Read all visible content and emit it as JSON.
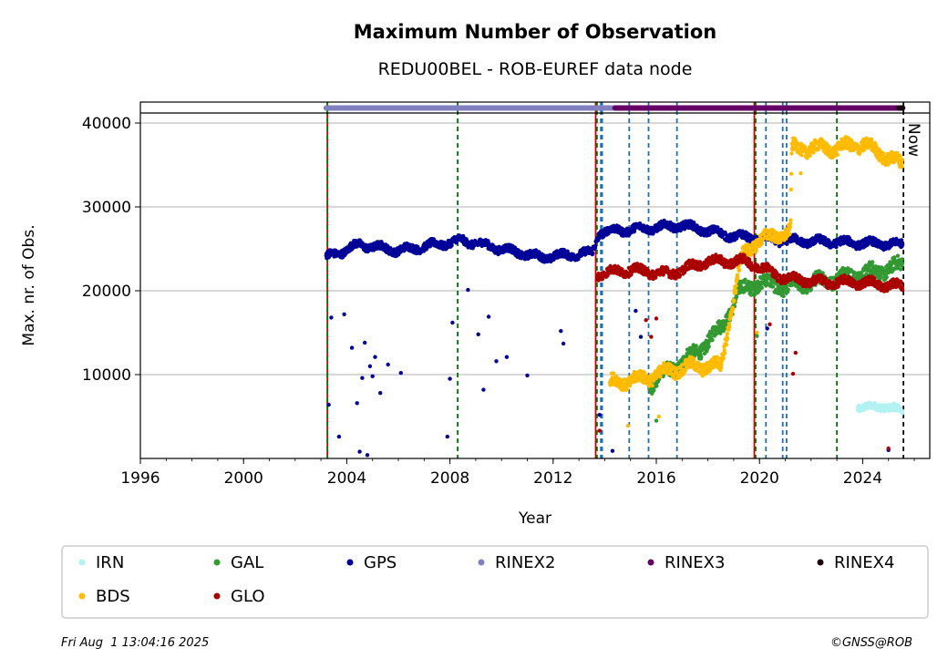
{
  "chart_data": {
    "type": "scatter",
    "title": "Maximum Number of Observation",
    "subtitle": "REDU00BEL - ROB-EUREF data node",
    "xlabel": "Year",
    "ylabel": "Max. nr. of Obs.",
    "xlim": [
      1996,
      2026.6
    ],
    "ylim": [
      0,
      42500
    ],
    "xticks": [
      1996,
      2000,
      2004,
      2008,
      2012,
      2016,
      2020,
      2024
    ],
    "yticks": [
      10000,
      20000,
      30000,
      40000
    ],
    "grid": "horizontal",
    "now_label": "Now",
    "now_x": 2025.58,
    "series": [
      {
        "name": "IRN",
        "color": "#b3f2f2",
        "x_start": 2023.8,
        "x_end": 2025.55,
        "segments": [
          [
            2023.8,
            6200
          ],
          [
            2024.3,
            6000
          ],
          [
            2024.8,
            6300
          ],
          [
            2025.55,
            5600
          ]
        ],
        "noise": 800
      },
      {
        "name": "GAL",
        "color": "#339933",
        "x_start": 2015.7,
        "x_end": 2025.55,
        "segments": [
          [
            2015.7,
            8800
          ],
          [
            2016.5,
            10500
          ],
          [
            2017.5,
            12500
          ],
          [
            2018.5,
            15500
          ],
          [
            2019.2,
            19800
          ],
          [
            2019.9,
            21000
          ],
          [
            2021,
            20500
          ],
          [
            2022,
            21000
          ],
          [
            2023,
            21500
          ],
          [
            2024,
            22000
          ],
          [
            2025.55,
            23000
          ]
        ],
        "noise": 1600
      },
      {
        "name": "GPS",
        "color": "#000099",
        "x_start": 2003.2,
        "x_end": 2025.55,
        "segments": [
          [
            2003.2,
            24000
          ],
          [
            2004.5,
            25500
          ],
          [
            2006,
            24800
          ],
          [
            2008.5,
            26000
          ],
          [
            2010,
            25000
          ],
          [
            2011.5,
            24000
          ],
          [
            2013.5,
            24500
          ],
          [
            2013.8,
            27000
          ],
          [
            2017,
            27800
          ],
          [
            2019,
            26500
          ],
          [
            2021,
            26000
          ],
          [
            2023,
            25800
          ],
          [
            2025.55,
            25500
          ]
        ],
        "noise": 900
      },
      {
        "name": "RINEX2",
        "color": "#8080c0",
        "x_start": 2003.2,
        "x_end": 2014.4,
        "y": 41800
      },
      {
        "name": "RINEX3",
        "color": "#660066",
        "x_start": 2014.4,
        "x_end": 2025.5,
        "y": 41800
      },
      {
        "name": "RINEX4",
        "color": "#1a0010",
        "x_start": 2025.4,
        "x_end": 2025.55,
        "y": 41800
      },
      {
        "name": "BDS",
        "color": "#ffbb00",
        "x_start": 2014.2,
        "x_end": 2025.55,
        "segments": [
          [
            2014.2,
            9000
          ],
          [
            2015.5,
            9500
          ],
          [
            2016.5,
            10500
          ],
          [
            2017.5,
            11000
          ],
          [
            2018.5,
            11000
          ],
          [
            2019.3,
            24000
          ],
          [
            2019.9,
            26000
          ],
          [
            2021.2,
            27000
          ],
          [
            2021.25,
            37000
          ],
          [
            2023,
            37000
          ],
          [
            2024,
            37500
          ],
          [
            2025.55,
            35000
          ]
        ],
        "noise": 1400
      },
      {
        "name": "GLO",
        "color": "#aa0000",
        "x_start": 2013.7,
        "x_end": 2025.55,
        "segments": [
          [
            2013.7,
            22000
          ],
          [
            2015,
            22500
          ],
          [
            2016.5,
            22000
          ],
          [
            2018,
            23500
          ],
          [
            2019.5,
            23500
          ],
          [
            2021,
            21500
          ],
          [
            2022.5,
            21000
          ],
          [
            2024,
            21000
          ],
          [
            2025.55,
            20500
          ]
        ],
        "noise": 1000
      }
    ],
    "outliers": [
      {
        "series": "GPS",
        "points": [
          [
            2003.3,
            6400
          ],
          [
            2003.4,
            16800
          ],
          [
            2003.7,
            2600
          ],
          [
            2003.9,
            17200
          ],
          [
            2004.2,
            13200
          ],
          [
            2004.4,
            6600
          ],
          [
            2004.5,
            800
          ],
          [
            2004.6,
            9600
          ],
          [
            2004.7,
            13800
          ],
          [
            2004.8,
            400
          ],
          [
            2004.9,
            11000
          ],
          [
            2005.0,
            9800
          ],
          [
            2005.1,
            12100
          ],
          [
            2005.3,
            7800
          ],
          [
            2005.6,
            11200
          ],
          [
            2006.1,
            10200
          ],
          [
            2007.9,
            2600
          ],
          [
            2008.0,
            9500
          ],
          [
            2008.1,
            16200
          ],
          [
            2008.7,
            20100
          ],
          [
            2009.1,
            14800
          ],
          [
            2009.3,
            8200
          ],
          [
            2009.5,
            16900
          ],
          [
            2009.8,
            11600
          ],
          [
            2010.2,
            12100
          ],
          [
            2011.0,
            9900
          ],
          [
            2012.3,
            15200
          ],
          [
            2012.4,
            13700
          ],
          [
            2013.8,
            5200
          ],
          [
            2014.3,
            900
          ],
          [
            2015.2,
            17600
          ],
          [
            2015.4,
            14500
          ],
          [
            2020.3,
            15500
          ],
          [
            2025.0,
            1000
          ]
        ]
      },
      {
        "series": "GLO",
        "points": [
          [
            2013.8,
            3300
          ],
          [
            2015.6,
            16500
          ],
          [
            2015.8,
            14500
          ],
          [
            2016.0,
            16700
          ],
          [
            2020.4,
            16000
          ],
          [
            2021.3,
            10100
          ],
          [
            2021.4,
            12600
          ],
          [
            2025.0,
            1200
          ]
        ]
      },
      {
        "series": "BDS",
        "points": [
          [
            2014.9,
            3900
          ],
          [
            2016.1,
            5000
          ],
          [
            2019.9,
            15000
          ],
          [
            2021.6,
            34000
          ]
        ]
      },
      {
        "series": "GAL",
        "points": [
          [
            2016.0,
            4500
          ],
          [
            2019.9,
            14600
          ]
        ]
      }
    ],
    "vertical_lines": [
      {
        "x": 2003.25,
        "color": "#cc0000",
        "style": "solid"
      },
      {
        "x": 2003.25,
        "color": "#007700",
        "style": "dashed"
      },
      {
        "x": 2008.3,
        "color": "#007700",
        "style": "dashed"
      },
      {
        "x": 2013.65,
        "color": "#cc0000",
        "style": "solid"
      },
      {
        "x": 2013.7,
        "color": "#007700",
        "style": "dashed"
      },
      {
        "x": 2013.85,
        "color": "#1f6fb4",
        "style": "dashed"
      },
      {
        "x": 2013.9,
        "color": "#1f6fb4",
        "style": "dashed"
      },
      {
        "x": 2014.95,
        "color": "#1f6fb4",
        "style": "dashed"
      },
      {
        "x": 2015.7,
        "color": "#1f6fb4",
        "style": "dashed"
      },
      {
        "x": 2016.8,
        "color": "#1f6fb4",
        "style": "dashed"
      },
      {
        "x": 2019.8,
        "color": "#cc0000",
        "style": "solid"
      },
      {
        "x": 2019.85,
        "color": "#007700",
        "style": "dashed"
      },
      {
        "x": 2020.25,
        "color": "#1f6fb4",
        "style": "dashed"
      },
      {
        "x": 2020.9,
        "color": "#1f6fb4",
        "style": "dashed"
      },
      {
        "x": 2021.05,
        "color": "#1f6fb4",
        "style": "dashed"
      },
      {
        "x": 2023.0,
        "color": "#007700",
        "style": "dashed"
      },
      {
        "x": 2025.58,
        "color": "#000000",
        "style": "dashed"
      }
    ],
    "legend": {
      "placement": "bottom",
      "entries": [
        {
          "label": "IRN",
          "color": "#b3f2f2"
        },
        {
          "label": "GAL",
          "color": "#339933"
        },
        {
          "label": "GPS",
          "color": "#000099"
        },
        {
          "label": "RINEX2",
          "color": "#8080c0"
        },
        {
          "label": "RINEX3",
          "color": "#660066"
        },
        {
          "label": "RINEX4",
          "color": "#1a0010"
        },
        {
          "label": "BDS",
          "color": "#ffbb00"
        },
        {
          "label": "GLO",
          "color": "#aa0000"
        }
      ]
    }
  },
  "footer": {
    "timestamp": "Fri Aug  1 13:04:16 2025",
    "credit": "©GNSS@ROB"
  }
}
